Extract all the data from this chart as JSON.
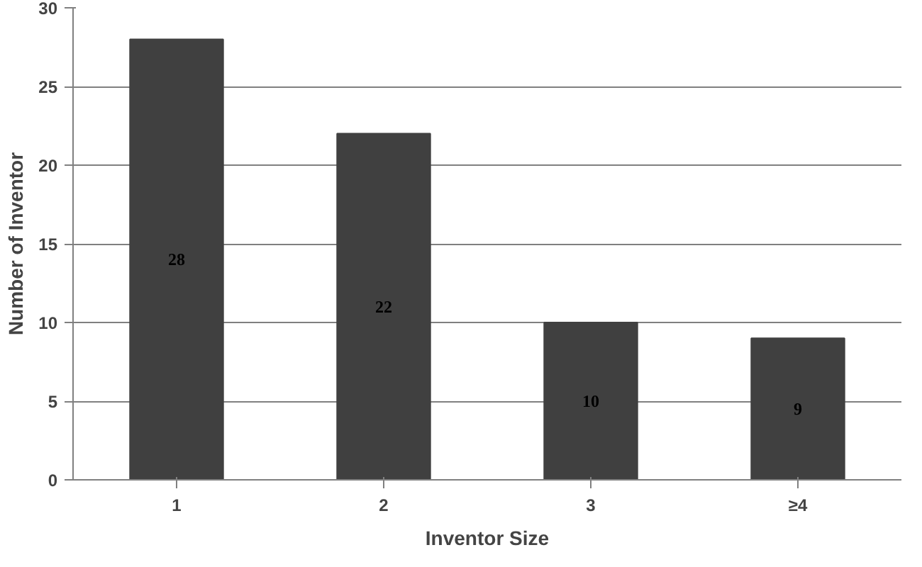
{
  "chart_data": {
    "type": "bar",
    "xlabel": "Inventor Size",
    "ylabel": "Number of Inventor",
    "categories": [
      "1",
      "2",
      "3",
      "≥4"
    ],
    "values": [
      28,
      22,
      10,
      9
    ],
    "color": "#404040",
    "ylim": [
      0,
      30
    ],
    "yticks": [
      0,
      5,
      10,
      15,
      20,
      25,
      30
    ],
    "grid": "y",
    "data_labels": true
  }
}
